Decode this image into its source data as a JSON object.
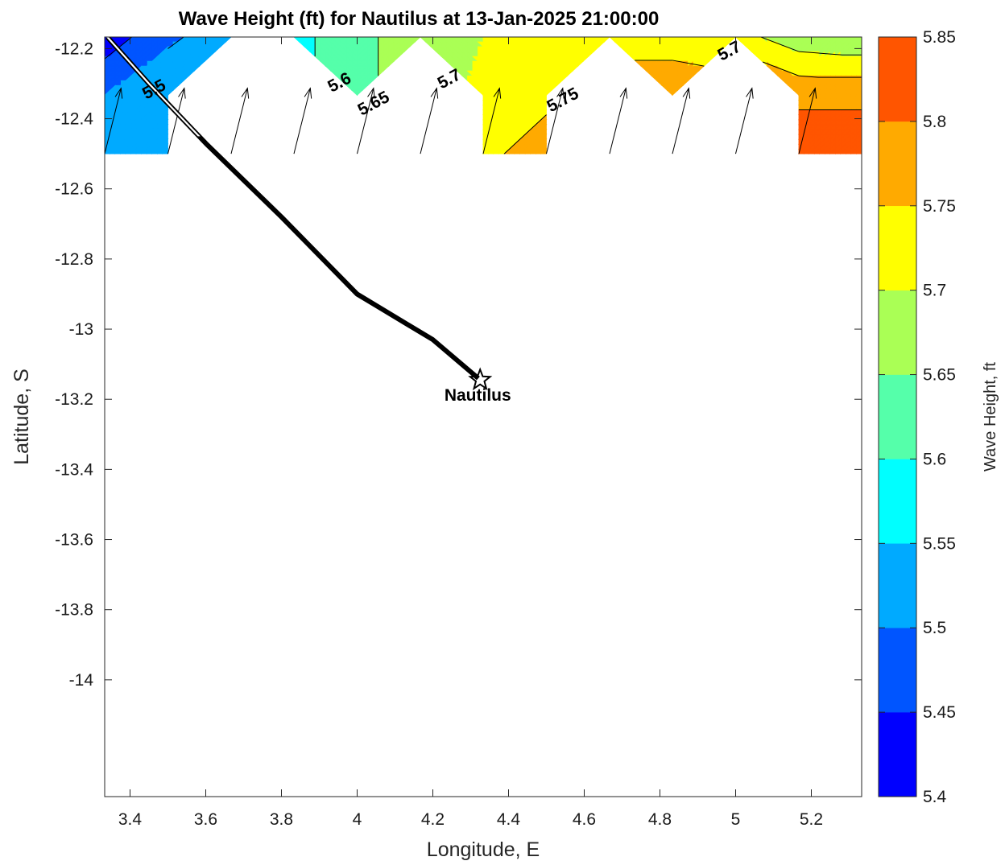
{
  "chart_data": {
    "type": "contour",
    "title": "Wave Height (ft) for Nautilus at 13-Jan-2025 21:00:00",
    "xlabel": "Longitude, E",
    "ylabel": "Latitude, S",
    "xlim": [
      3.333,
      5.333
    ],
    "ylim": [
      -14.333,
      -12.167
    ],
    "xticks": [
      3.4,
      3.6,
      3.8,
      4,
      4.2,
      4.4,
      4.6,
      4.8,
      5,
      5.2
    ],
    "xtick_labels": [
      "3.4",
      "3.6",
      "3.8",
      "4",
      "4.2",
      "4.4",
      "4.6",
      "4.8",
      "5",
      "5.2"
    ],
    "yticks": [
      -12.2,
      -12.4,
      -12.6,
      -12.8,
      -13,
      -13.2,
      -13.4,
      -13.6,
      -13.8,
      -14
    ],
    "ytick_labels": [
      "-12.2",
      "-12.4",
      "-12.6",
      "-12.8",
      "-13",
      "-13.2",
      "-13.4",
      "-13.6",
      "-13.8",
      "-14"
    ],
    "grid": false,
    "colorbar": {
      "label": "Wave Height, ft",
      "levels": [
        5.4,
        5.45,
        5.5,
        5.55,
        5.6,
        5.65,
        5.7,
        5.75,
        5.8,
        5.85
      ],
      "level_labels": [
        "5.4",
        "5.45",
        "5.5",
        "5.55",
        "5.6",
        "5.65",
        "5.7",
        "5.75",
        "5.8",
        "5.85"
      ],
      "colors": [
        "#0000ff",
        "#0055ff",
        "#00aaff",
        "#00ffff",
        "#55ffaa",
        "#aaff55",
        "#ffff00",
        "#ffaa00",
        "#ff5500"
      ]
    },
    "grid_lons": [
      3.333,
      3.5,
      3.667,
      3.833,
      4.0,
      4.167,
      4.333,
      4.5,
      4.667,
      4.833,
      5.0,
      5.167,
      5.333
    ],
    "grid_lats": [
      -12.167,
      -12.333,
      -12.5
    ],
    "wave_height": [
      [
        5.42,
        5.49,
        5.53,
        5.58,
        5.64,
        5.67,
        5.7,
        5.72,
        5.73,
        5.73,
        5.72,
        5.67,
        5.66
      ],
      [
        5.5,
        5.54,
        null,
        null,
        5.64,
        null,
        5.71,
        5.74,
        null,
        5.78,
        null,
        5.79,
        5.79
      ],
      [
        5.52,
        5.55,
        null,
        null,
        5.67,
        null,
        5.74,
        5.77,
        null,
        5.82,
        null,
        5.83,
        5.83
      ]
    ],
    "contour_labels": [
      {
        "text": "5.5",
        "lon": 3.47,
        "lat": -12.33
      },
      {
        "text": "5.6",
        "lon": 3.96,
        "lat": -12.31
      },
      {
        "text": "5.65",
        "lon": 4.05,
        "lat": -12.37
      },
      {
        "text": "5.7",
        "lon": 4.25,
        "lat": -12.3
      },
      {
        "text": "5.75",
        "lon": 4.55,
        "lat": -12.36
      },
      {
        "text": "5.7",
        "lon": 4.99,
        "lat": -12.22
      }
    ],
    "wave_arrows": {
      "lons": [
        3.333,
        3.5,
        3.667,
        3.833,
        4.0,
        4.167,
        4.333,
        4.5,
        4.667,
        4.833,
        5.0,
        5.167
      ],
      "lats": [
        -12.167,
        -12.5
      ],
      "direction": "toward NNE"
    },
    "track": {
      "lons": [
        3.34,
        3.45,
        3.6,
        3.8,
        4.0,
        4.2,
        4.32
      ],
      "lats": [
        -12.167,
        -12.3,
        -12.47,
        -12.68,
        -12.9,
        -13.03,
        -13.14
      ]
    },
    "station": {
      "name": "Nautilus",
      "lon": 4.325,
      "lat": -13.145,
      "marker": "star"
    }
  }
}
